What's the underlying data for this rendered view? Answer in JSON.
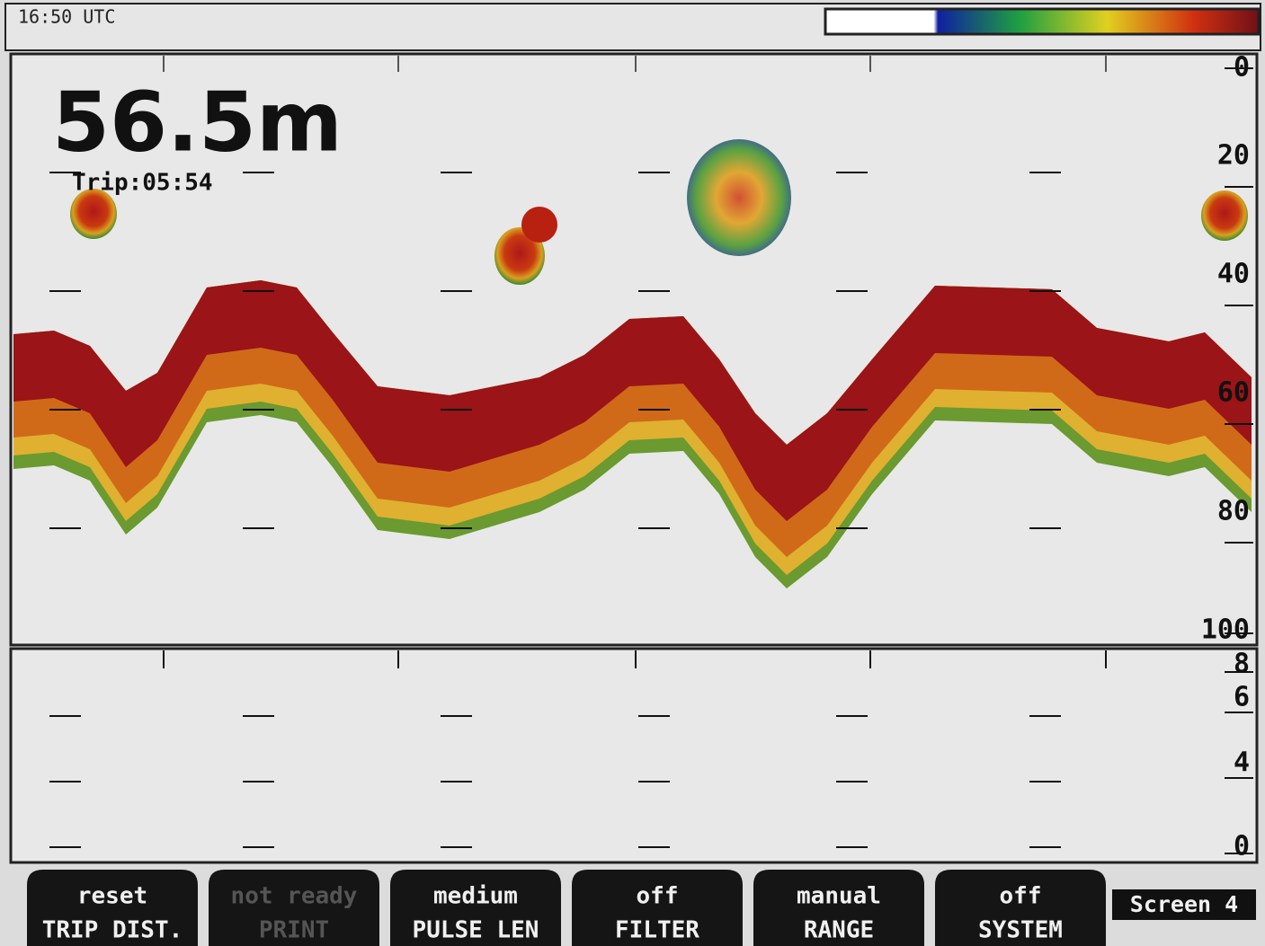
{
  "header": {
    "time": "16:50 UTC"
  },
  "readout": {
    "depth": "56.5m",
    "trip": "Trip:05:54"
  },
  "depth_scale": {
    "ticks": [
      0,
      20,
      40,
      60,
      80,
      100
    ]
  },
  "lower_scale": {
    "ticks": [
      8,
      6,
      4,
      0
    ]
  },
  "softkeys": [
    {
      "value": "reset",
      "label": "TRIP DIST."
    },
    {
      "value": "not ready",
      "label": "PRINT"
    },
    {
      "value": "medium",
      "label": "PULSE LEN"
    },
    {
      "value": "off",
      "label": "FILTER"
    },
    {
      "value": "manual",
      "label": "RANGE"
    },
    {
      "value": "off",
      "label": "SYSTEM"
    }
  ],
  "screen": "Screen 4"
}
